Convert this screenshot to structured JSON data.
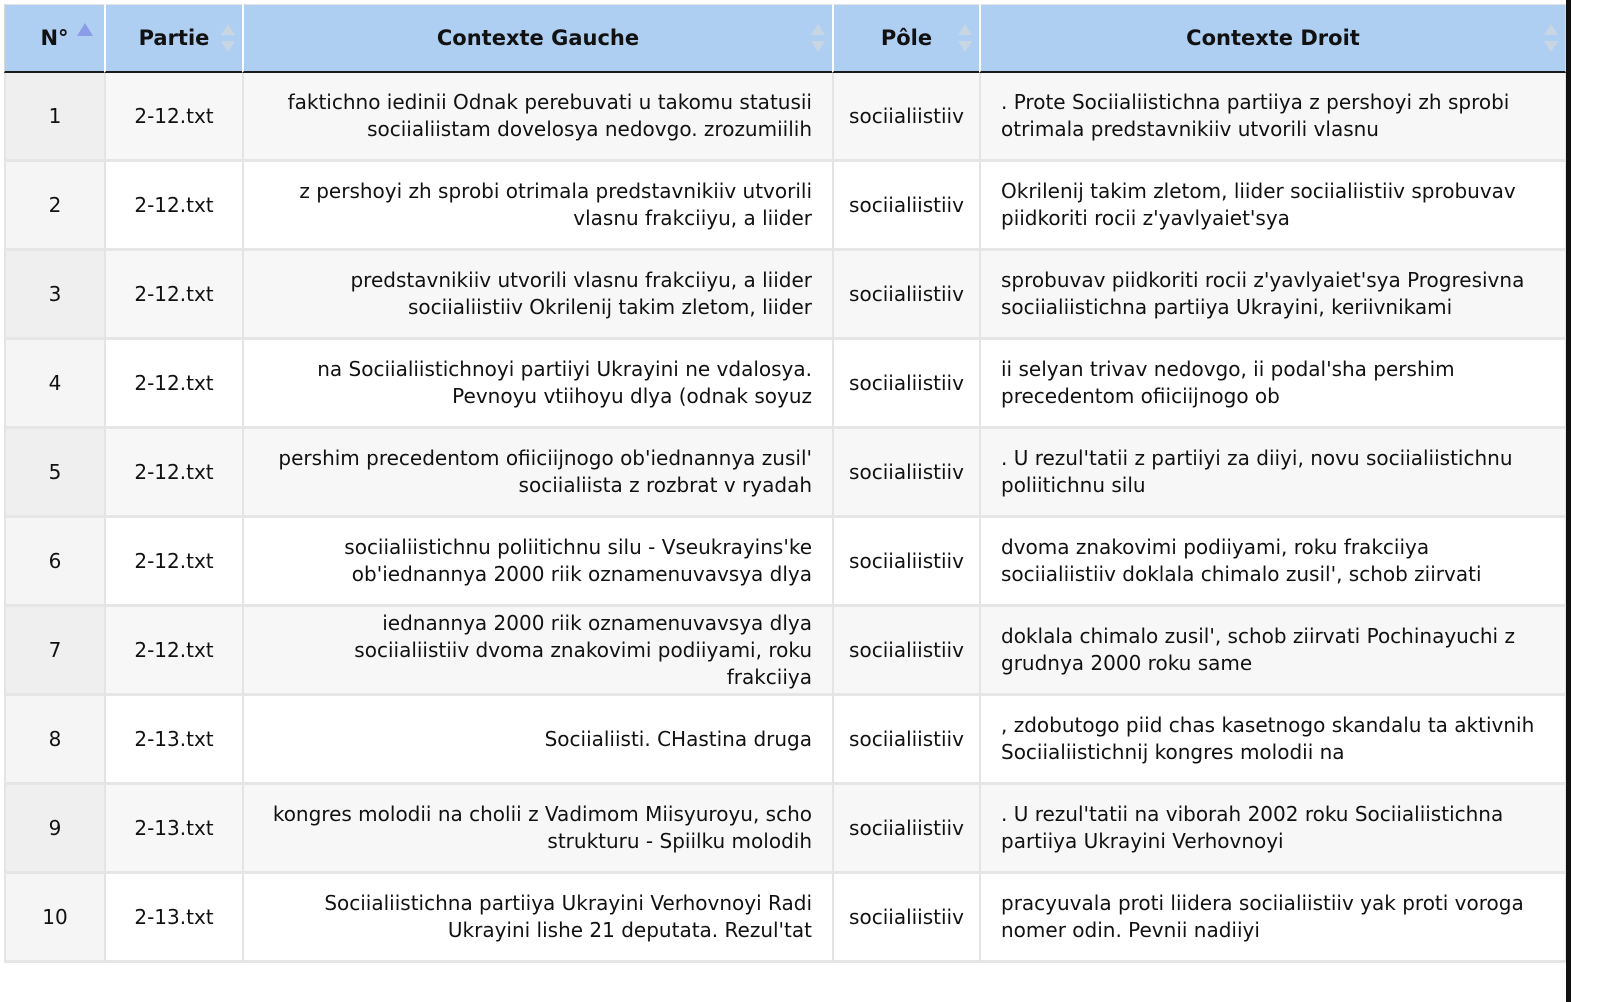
{
  "columns": {
    "num": "N°",
    "partie": "Partie",
    "left": "Contexte Gauche",
    "pole": "Pôle",
    "right": "Contexte Droit"
  },
  "rows": [
    {
      "num": "1",
      "partie": "2-12.txt",
      "left": "faktichno iedinii Odnak perebuvati u takomu statusii sociialiistam dovelosya nedovgo. zrozumiilih",
      "pole": "sociialiistiiv",
      "right": ". Prote Sociialiistichna partiiya z pershoyi zh sprobi otrimala predstavnikiiv utvorili vlasnu"
    },
    {
      "num": "2",
      "partie": "2-12.txt",
      "left": "z pershoyi zh sprobi otrimala predstavnikiiv utvorili vlasnu frakciiyu, a liider",
      "pole": "sociialiistiiv",
      "right": "Okrilenij takim zletom, liider sociialiistiiv sprobuvav piidkoriti rocii z'yavlyaiet'sya"
    },
    {
      "num": "3",
      "partie": "2-12.txt",
      "left": "predstavnikiiv utvorili vlasnu frakciiyu, a liider sociialiistiiv Okrilenij takim zletom, liider",
      "pole": "sociialiistiiv",
      "right": "sprobuvav piidkoriti rocii z'yavlyaiet'sya Progresivna sociialiistichna partiiya Ukrayini, keriivnikami"
    },
    {
      "num": "4",
      "partie": "2-12.txt",
      "left": "na Sociialiistichnoyi partiiyi Ukrayini ne vdalosya. Pevnoyu vtiihoyu dlya (odnak soyuz",
      "pole": "sociialiistiiv",
      "right": "ii selyan trivav nedovgo, ii podal'sha pershim precedentom ofiiciijnogo ob"
    },
    {
      "num": "5",
      "partie": "2-12.txt",
      "left": "pershim precedentom ofiiciijnogo ob'iednannya zusil' sociialiista z rozbrat v ryadah",
      "pole": "sociialiistiiv",
      "right": ". U rezul'tatii z partiiyi za diiyi, novu sociialiistichnu poliitichnu silu"
    },
    {
      "num": "6",
      "partie": "2-12.txt",
      "left": "sociialiistichnu poliitichnu silu - Vseukrayins'ke ob'iednannya 2000 riik oznamenuvavsya dlya",
      "pole": "sociialiistiiv",
      "right": "dvoma znakovimi podiiyami, roku frakciiya sociialiistiiv doklala chimalo zusil', schob ziirvati"
    },
    {
      "num": "7",
      "partie": "2-12.txt",
      "left": "iednannya 2000 riik oznamenuvavsya dlya sociialiistiiv dvoma znakovimi podiiyami, roku frakciiya",
      "pole": "sociialiistiiv",
      "right": "doklala chimalo zusil', schob ziirvati Pochinayuchi z grudnya 2000 roku same"
    },
    {
      "num": "8",
      "partie": "2-13.txt",
      "left": "Sociialiisti. CHastina druga",
      "pole": "sociialiistiiv",
      "right": ", zdobutogo piid chas kasetnogo skandalu ta aktivnih Sociialiistichnij kongres molodii na"
    },
    {
      "num": "9",
      "partie": "2-13.txt",
      "left": "kongres molodii na cholii z Vadimom Miisyuroyu, scho strukturu - Spiilku molodih",
      "pole": "sociialiistiiv",
      "right": ". U rezul'tatii na viborah 2002 roku Sociialiistichna partiiya Ukrayini Verhovnoyi"
    },
    {
      "num": "10",
      "partie": "2-13.txt",
      "left": "Sociialiistichna partiiya Ukrayini Verhovnoyi Radi Ukrayini lishe 21 deputata. Rezul'tat",
      "pole": "sociialiistiiv",
      "right": "pracyuvala proti liidera sociialiistiiv yak proti voroga nomer odin. Pevnii nadiiyi"
    }
  ]
}
